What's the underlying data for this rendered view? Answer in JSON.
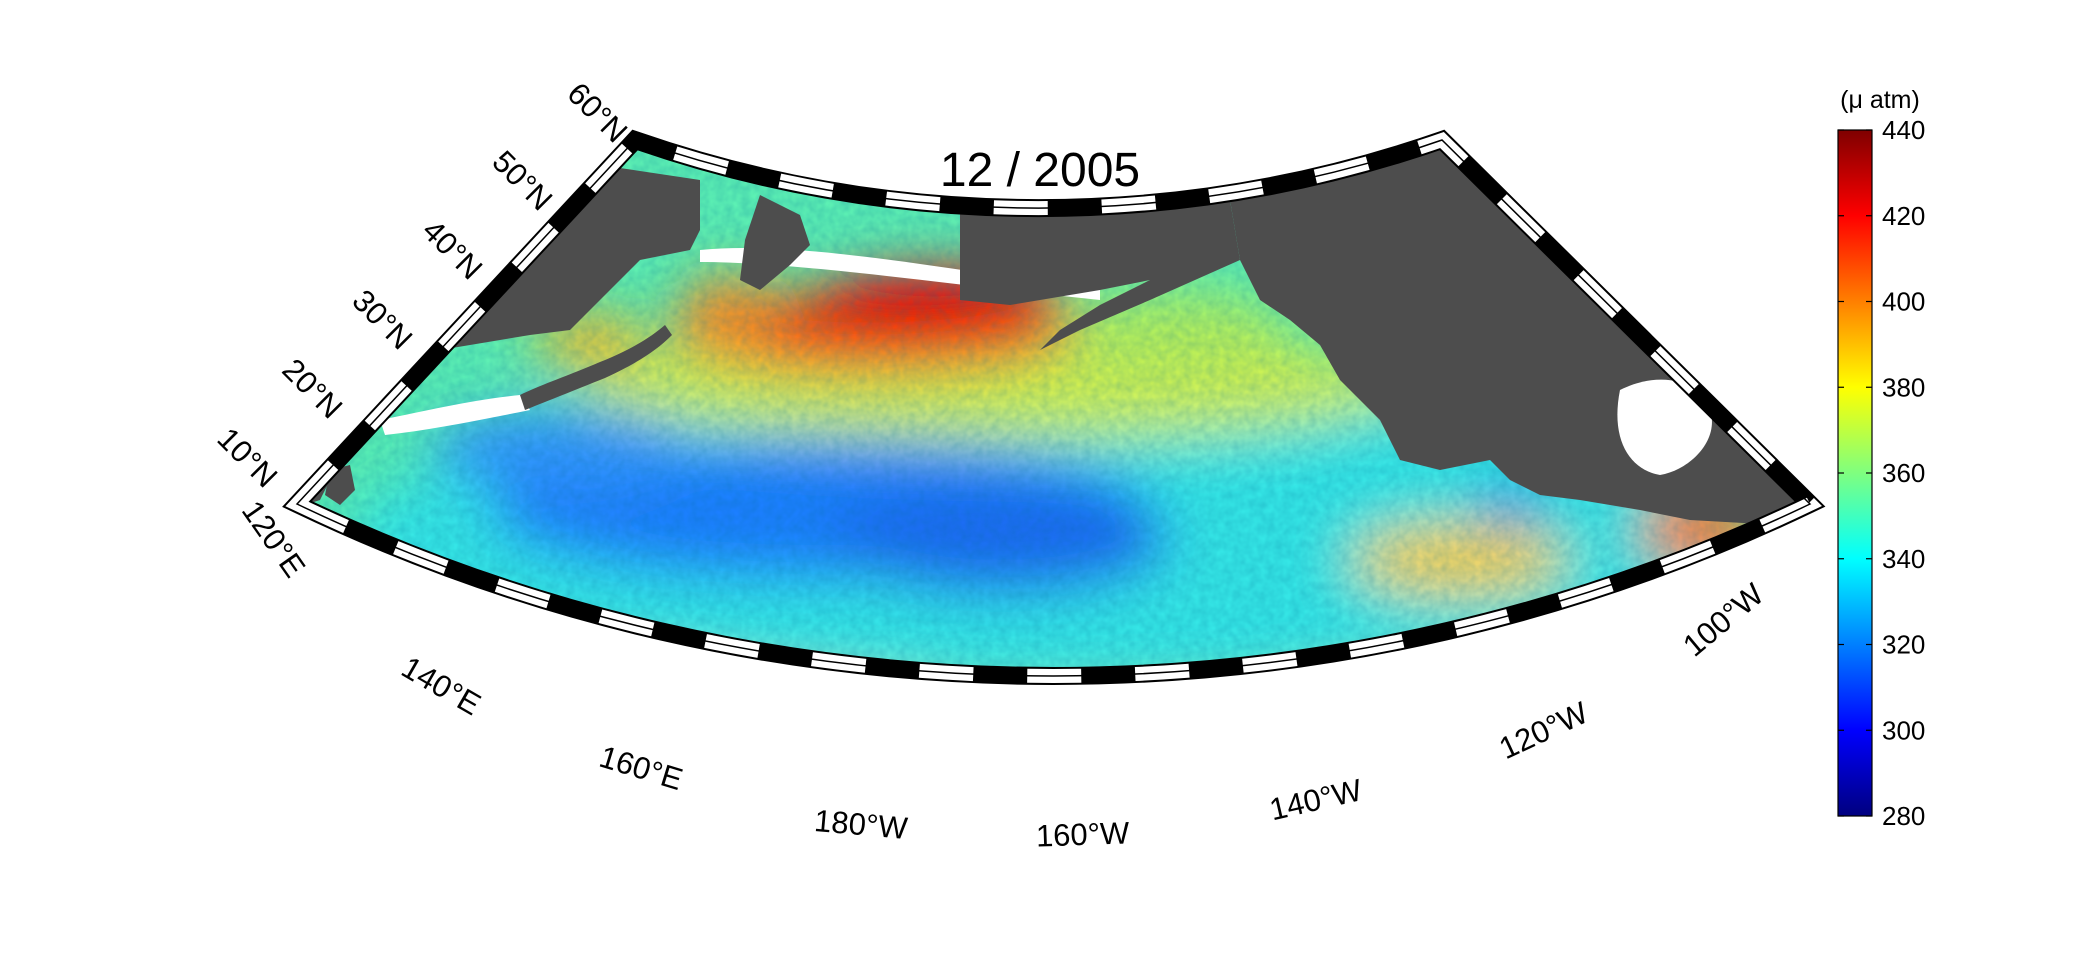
{
  "map": {
    "title": "12 / 2005",
    "projection": "conic sector",
    "lon_range": [
      "120°E",
      "100°W"
    ],
    "lat_range": [
      "10°N",
      "60°N"
    ],
    "land_color": "#4d4d4d",
    "coast_fill_color": "#ffffff",
    "frame_style": "alternating black and white ticks",
    "lat_labels": [
      "60°N",
      "50°N",
      "40°N",
      "30°N",
      "20°N",
      "10°N"
    ],
    "lon_labels": [
      "120°E",
      "140°E",
      "160°E",
      "180°W",
      "160°W",
      "140°W",
      "120°W",
      "100°W"
    ],
    "field_pattern": [
      {
        "region": "subarctic north-west",
        "level": "high",
        "approx_uatm": 410
      },
      {
        "region": "north-central band",
        "level": "medium-high",
        "approx_uatm": 385
      },
      {
        "region": "subtropical central",
        "level": "low",
        "approx_uatm": 325
      },
      {
        "region": "tropics",
        "level": "medium",
        "approx_uatm": 358
      },
      {
        "region": "eastern coastal",
        "level": "medium-high",
        "approx_uatm": 380
      }
    ]
  },
  "colorbar": {
    "unit": "(μ atm)",
    "min": 280,
    "max": 440,
    "ticks": [
      "440",
      "420",
      "400",
      "380",
      "360",
      "340",
      "320",
      "300",
      "280"
    ],
    "colormap": "jet",
    "colors": [
      "#00007f",
      "#0000ff",
      "#007fff",
      "#00ffff",
      "#7fff7f",
      "#ffff00",
      "#ff7f00",
      "#ff0000",
      "#7f0000"
    ]
  }
}
